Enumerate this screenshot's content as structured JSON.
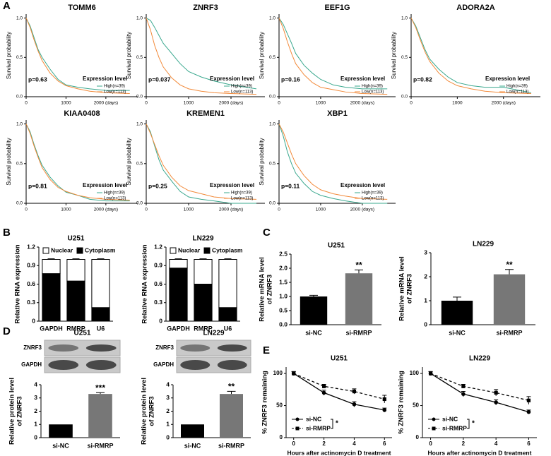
{
  "panel_labels": [
    "A",
    "B",
    "C",
    "D",
    "E"
  ],
  "chart_data": [
    {
      "type": "km",
      "title": "TOMM6",
      "ylabel": "Survival probability",
      "p_value_text": "p=0.63",
      "legend_title": "Expression level",
      "xlim": [
        0,
        2800
      ],
      "xticks": [
        0,
        1000,
        {
          "value": 2000,
          "label": "2000 (days)"
        }
      ],
      "ylim": [
        0,
        1.05
      ],
      "yticks": [
        {
          "value": 0,
          "label": "0.0"
        },
        {
          "value": 0.5,
          "label": "0.5"
        },
        {
          "value": 1,
          "label": "1.0"
        }
      ],
      "x": [
        0,
        100,
        200,
        300,
        400,
        600,
        800,
        1000,
        1300,
        1600,
        2000,
        2600
      ],
      "series": [
        {
          "name": "High(n=39)",
          "color": "#3aa88e",
          "values": [
            1,
            0.9,
            0.75,
            0.6,
            0.5,
            0.35,
            0.22,
            0.15,
            0.12,
            0.1,
            0.08,
            0.08
          ]
        },
        {
          "name": "Low(n=113)",
          "color": "#f28a3a",
          "values": [
            1,
            0.88,
            0.72,
            0.58,
            0.46,
            0.3,
            0.2,
            0.14,
            0.1,
            0.07,
            0.05,
            0.04
          ]
        }
      ]
    },
    {
      "type": "km",
      "title": "ZNRF3",
      "ylabel": "Survival probability",
      "p_value_text": "p=0.037",
      "legend_title": "Expression level",
      "xlim": [
        0,
        2800
      ],
      "xticks": [
        0,
        1000,
        {
          "value": 2000,
          "label": "2000 (days)"
        }
      ],
      "ylim": [
        0,
        1.05
      ],
      "yticks": [
        {
          "value": 0,
          "label": "0.0"
        },
        {
          "value": 0.5,
          "label": "0.5"
        },
        {
          "value": 1,
          "label": "1.0"
        }
      ],
      "x": [
        0,
        100,
        200,
        300,
        400,
        600,
        800,
        1000,
        1300,
        1600,
        2000,
        2600
      ],
      "series": [
        {
          "name": "High(n=39)",
          "color": "#3aa88e",
          "values": [
            1,
            0.97,
            0.88,
            0.78,
            0.68,
            0.55,
            0.42,
            0.32,
            0.25,
            0.2,
            0.15,
            0.1
          ]
        },
        {
          "name": "Low(n=113)",
          "color": "#f28a3a",
          "values": [
            1,
            0.85,
            0.65,
            0.5,
            0.38,
            0.24,
            0.15,
            0.1,
            0.07,
            0.05,
            0.04,
            0.03
          ]
        }
      ]
    },
    {
      "type": "km",
      "title": "EEF1G",
      "ylabel": "Survival probability",
      "p_value_text": "p=0.16",
      "legend_title": "Expression level",
      "xlim": [
        0,
        2800
      ],
      "xticks": [
        0,
        1000,
        {
          "value": 2000,
          "label": "2000 (days)"
        }
      ],
      "ylim": [
        0,
        1.05
      ],
      "yticks": [
        {
          "value": 0,
          "label": "0.0"
        },
        {
          "value": 0.5,
          "label": "0.5"
        },
        {
          "value": 1,
          "label": "1.0"
        }
      ],
      "x": [
        0,
        100,
        200,
        300,
        400,
        600,
        800,
        1000,
        1300,
        1600,
        2000,
        2600
      ],
      "series": [
        {
          "name": "High(n=39)",
          "color": "#3aa88e",
          "values": [
            1,
            0.92,
            0.8,
            0.68,
            0.55,
            0.4,
            0.3,
            0.22,
            0.15,
            0.12,
            0.1,
            0.1
          ]
        },
        {
          "name": "Low(n=113)",
          "color": "#f28a3a",
          "values": [
            1,
            0.87,
            0.7,
            0.55,
            0.42,
            0.28,
            0.18,
            0.12,
            0.09,
            0.06,
            0.04,
            0.03
          ]
        }
      ]
    },
    {
      "type": "km",
      "title": "ADORA2A",
      "ylabel": "Survival probability",
      "p_value_text": "p=0.82",
      "legend_title": "Expression level",
      "xlim": [
        0,
        2800
      ],
      "xticks": [
        0,
        1000,
        {
          "value": 2000,
          "label": "2000 (days)"
        }
      ],
      "ylim": [
        0,
        1.05
      ],
      "yticks": [
        {
          "value": 0,
          "label": "0.0"
        },
        {
          "value": 0.5,
          "label": "0.5"
        },
        {
          "value": 1,
          "label": "1.0"
        }
      ],
      "x": [
        0,
        100,
        200,
        300,
        400,
        600,
        800,
        1000,
        1300,
        1600,
        2000,
        2600
      ],
      "series": [
        {
          "name": "High(n=39)",
          "color": "#3aa88e",
          "values": [
            1,
            0.9,
            0.75,
            0.6,
            0.48,
            0.35,
            0.25,
            0.18,
            0.14,
            0.12,
            0.12,
            0.05
          ]
        },
        {
          "name": "Low(n=113)",
          "color": "#f28a3a",
          "values": [
            1,
            0.88,
            0.72,
            0.57,
            0.45,
            0.3,
            0.2,
            0.14,
            0.1,
            0.07,
            0.05,
            0.04
          ]
        }
      ]
    },
    {
      "type": "km",
      "title": "KIAA0408",
      "ylabel": "Survival probability",
      "p_value_text": "p=0.81",
      "legend_title": "Expression level",
      "xlim": [
        0,
        2800
      ],
      "xticks": [
        0,
        1000,
        {
          "value": 2000,
          "label": "2000 (days)"
        }
      ],
      "ylim": [
        0,
        1.05
      ],
      "yticks": [
        {
          "value": 0,
          "label": "0.0"
        },
        {
          "value": 0.5,
          "label": "0.5"
        },
        {
          "value": 1,
          "label": "1.0"
        }
      ],
      "x": [
        0,
        100,
        200,
        300,
        400,
        600,
        800,
        1000,
        1300,
        1600,
        2000,
        2600
      ],
      "series": [
        {
          "name": "High(n=39)",
          "color": "#3aa88e",
          "values": [
            1,
            0.9,
            0.74,
            0.6,
            0.48,
            0.33,
            0.22,
            0.14,
            0.1,
            0.05,
            0.03,
            0.03
          ]
        },
        {
          "name": "Low(n=113)",
          "color": "#f28a3a",
          "values": [
            1,
            0.88,
            0.72,
            0.58,
            0.45,
            0.3,
            0.2,
            0.15,
            0.1,
            0.07,
            0.05,
            0.04
          ]
        }
      ]
    },
    {
      "type": "km",
      "title": "KREMEN1",
      "ylabel": "Survival probability",
      "p_value_text": "p=0.25",
      "legend_title": "Expression level",
      "xlim": [
        0,
        2800
      ],
      "xticks": [
        0,
        1000,
        {
          "value": 2000,
          "label": "2000 (days)"
        }
      ],
      "ylim": [
        0,
        1.05
      ],
      "yticks": [
        {
          "value": 0,
          "label": "0.0"
        },
        {
          "value": 0.5,
          "label": "0.5"
        },
        {
          "value": 1,
          "label": "1.0"
        }
      ],
      "x": [
        0,
        100,
        200,
        300,
        400,
        600,
        800,
        1000,
        1300,
        1600,
        2000,
        2600
      ],
      "series": [
        {
          "name": "High(n=39)",
          "color": "#3aa88e",
          "values": [
            1,
            0.9,
            0.72,
            0.55,
            0.42,
            0.28,
            0.15,
            0.08,
            0.05,
            0.03,
            0,
            0
          ]
        },
        {
          "name": "Low(n=113)",
          "color": "#f28a3a",
          "values": [
            1,
            0.88,
            0.74,
            0.6,
            0.48,
            0.33,
            0.22,
            0.16,
            0.12,
            0.08,
            0.06,
            0.05
          ]
        }
      ]
    },
    {
      "type": "km",
      "title": "XBP1",
      "ylabel": "Survival probability",
      "p_value_text": "p=0.11",
      "legend_title": "Expression level",
      "xlim": [
        0,
        2800
      ],
      "xticks": [
        0,
        1000,
        {
          "value": 2000,
          "label": "2000 (days)"
        }
      ],
      "ylim": [
        0,
        1.05
      ],
      "yticks": [
        {
          "value": 0,
          "label": "0.0"
        },
        {
          "value": 0.5,
          "label": "0.5"
        },
        {
          "value": 1,
          "label": "1.0"
        }
      ],
      "x": [
        0,
        100,
        200,
        300,
        400,
        600,
        800,
        1000,
        1300,
        1600,
        2000,
        2600
      ],
      "series": [
        {
          "name": "High(n=39)",
          "color": "#3aa88e",
          "values": [
            1,
            0.85,
            0.65,
            0.5,
            0.38,
            0.25,
            0.15,
            0.1,
            0.06,
            0.03,
            0,
            0
          ]
        },
        {
          "name": "Low(n=113)",
          "color": "#f28a3a",
          "values": [
            1,
            0.9,
            0.76,
            0.62,
            0.5,
            0.35,
            0.24,
            0.17,
            0.12,
            0.09,
            0.06,
            0.05
          ]
        }
      ]
    },
    {
      "type": "stacked_bar",
      "title": "U251",
      "ylabel": [
        "Relative RNA expression"
      ],
      "categories": [
        "GAPDH",
        "RMRP",
        "U6"
      ],
      "ylim": [
        0,
        1.2
      ],
      "yticks": [
        0,
        0.3,
        0.6,
        0.9,
        1.2
      ],
      "series": [
        {
          "name": "Nuclear",
          "color": "#ffffff",
          "values": [
            0.23,
            0.35,
            0.78
          ],
          "errors": [
            0.01,
            0.01,
            0.01
          ]
        },
        {
          "name": "Cytoplasm",
          "color": "#000000",
          "values": [
            0.77,
            0.65,
            0.22
          ],
          "errors": [
            0.03,
            0.02,
            0.01
          ]
        }
      ]
    },
    {
      "type": "stacked_bar",
      "title": "LN229",
      "ylabel": [
        "Relative RNA expression"
      ],
      "categories": [
        "GAPDH",
        "RMRP",
        "U6"
      ],
      "ylim": [
        0,
        1.2
      ],
      "yticks": [
        0,
        0.3,
        0.6,
        0.9,
        1.2
      ],
      "series": [
        {
          "name": "Nuclear",
          "color": "#ffffff",
          "values": [
            0.14,
            0.4,
            0.78
          ],
          "errors": [
            0.01,
            0.01,
            0.01
          ]
        },
        {
          "name": "Cytoplasm",
          "color": "#000000",
          "values": [
            0.86,
            0.6,
            0.22
          ],
          "errors": [
            0.02,
            0.02,
            0.01
          ]
        }
      ]
    },
    {
      "type": "bar",
      "title": "U251",
      "ylabel": [
        "Relative mRNA level",
        "of ZNRF3"
      ],
      "categories": [
        "si-NC",
        "si-RMRP"
      ],
      "values": [
        1,
        1.82
      ],
      "errors": [
        0.04,
        0.12
      ],
      "significance": [
        null,
        "**"
      ],
      "colors": [
        "#000000",
        "#777777"
      ],
      "ylim": [
        0,
        2.5
      ],
      "yticks": [
        {
          "value": 0,
          "label": "0.0"
        },
        0.5,
        {
          "value": 1,
          "label": "1.0"
        },
        1.5,
        {
          "value": 2,
          "label": "2.0"
        },
        2.5
      ]
    },
    {
      "type": "bar",
      "title": "LN229",
      "ylabel": [
        "Relative mRNA level",
        "of ZNRF3"
      ],
      "categories": [
        "si-NC",
        "si-RMRP"
      ],
      "values": [
        1,
        2.1
      ],
      "errors": [
        0.15,
        0.2
      ],
      "significance": [
        null,
        "**"
      ],
      "colors": [
        "#000000",
        "#777777"
      ],
      "ylim": [
        0,
        3
      ],
      "yticks": [
        0,
        1,
        2,
        3
      ]
    },
    {
      "type": "bar",
      "title": "U251",
      "ylabel": [
        "Relative protein level",
        "of ZNRF3"
      ],
      "categories": [
        "si-NC",
        "si-RMRP"
      ],
      "values": [
        1,
        3.3
      ],
      "errors": [
        0,
        0.1
      ],
      "significance": [
        null,
        "***"
      ],
      "colors": [
        "#000000",
        "#777777"
      ],
      "blot_rows": [
        "ZNRF3",
        "GAPDH"
      ],
      "ylim": [
        0,
        4
      ],
      "yticks": [
        0,
        1,
        2,
        3,
        4
      ]
    },
    {
      "type": "bar",
      "title": "LN229",
      "ylabel": [
        "Relative protein level",
        "of ZNRF3"
      ],
      "categories": [
        "si-NC",
        "si-RMRP"
      ],
      "values": [
        1,
        3.3
      ],
      "errors": [
        0,
        0.2
      ],
      "significance": [
        null,
        "**"
      ],
      "colors": [
        "#000000",
        "#777777"
      ],
      "blot_rows": [
        "ZNRF3",
        "GAPDH"
      ],
      "ylim": [
        0,
        4
      ],
      "yticks": [
        0,
        1,
        2,
        3,
        4
      ]
    },
    {
      "type": "line",
      "title": "U251",
      "ylabel": [
        "% ZNRF3 remaining"
      ],
      "xlabel": "Hours after actinomycin D treatment",
      "significance": "*",
      "x": [
        0,
        2,
        4,
        6
      ],
      "xlim": [
        -0.5,
        6.5
      ],
      "xticks": [
        0,
        2,
        4,
        6
      ],
      "ylim": [
        0,
        110
      ],
      "yticks": [
        0,
        50,
        100
      ],
      "series": [
        {
          "name": "si-NC",
          "color": "#000000",
          "marker": "circle",
          "dashed": false,
          "values": [
            100,
            70,
            52,
            43
          ],
          "errors": [
            3,
            4,
            4,
            3
          ]
        },
        {
          "name": "si-RMRP",
          "color": "#000000",
          "marker": "square",
          "dashed": true,
          "values": [
            100,
            80,
            72,
            60
          ],
          "errors": [
            3,
            3,
            4,
            6
          ]
        }
      ]
    },
    {
      "type": "line",
      "title": "LN229",
      "ylabel": [
        "% ZNRF3 remaining"
      ],
      "xlabel": "Hours after actinomycin D treatment",
      "significance": "*",
      "x": [
        0,
        2,
        4,
        6
      ],
      "xlim": [
        -0.5,
        6.5
      ],
      "xticks": [
        0,
        2,
        4,
        6
      ],
      "ylim": [
        0,
        110
      ],
      "yticks": [
        0,
        50,
        100
      ],
      "series": [
        {
          "name": "si-NC",
          "color": "#000000",
          "marker": "circle",
          "dashed": false,
          "values": [
            100,
            68,
            55,
            40
          ],
          "errors": [
            3,
            4,
            4,
            3
          ]
        },
        {
          "name": "si-RMRP",
          "color": "#000000",
          "marker": "square",
          "dashed": true,
          "values": [
            100,
            80,
            70,
            58
          ],
          "errors": [
            3,
            3,
            5,
            6
          ]
        }
      ]
    }
  ]
}
